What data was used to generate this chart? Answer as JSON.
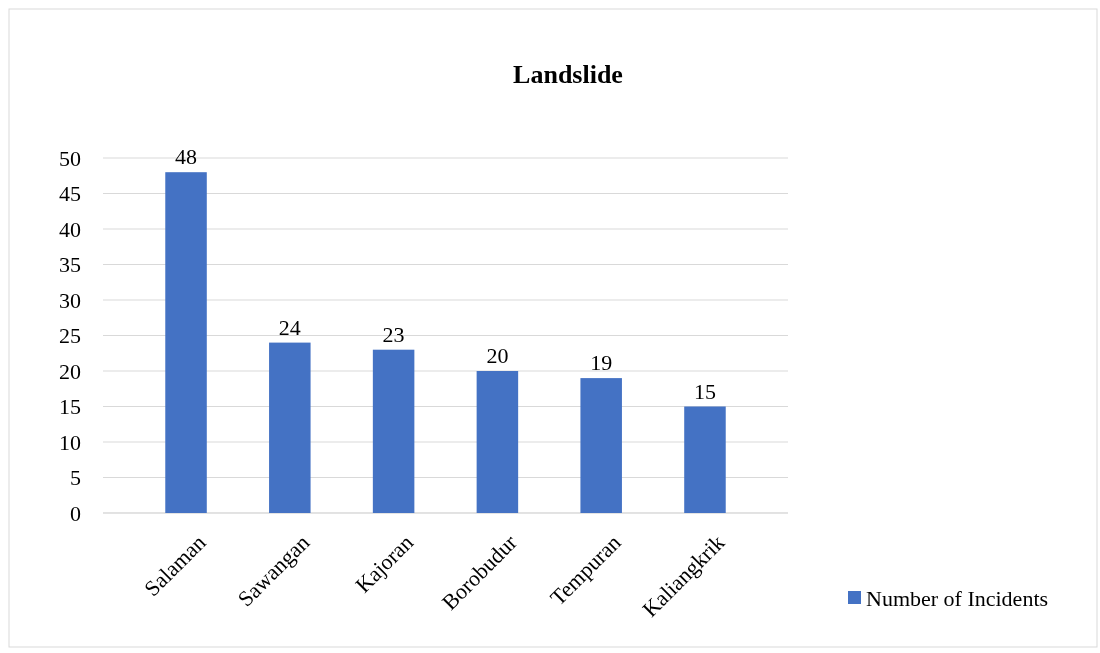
{
  "chart_data": {
    "type": "bar",
    "title": "Landslide",
    "categories": [
      "Salaman",
      "Sawangan",
      "Kajoran",
      "Borobudur",
      "Tempuran",
      "Kaliangkrik"
    ],
    "series": [
      {
        "name": "Number of Incidents",
        "color": "#4472c4",
        "values": [
          48,
          24,
          23,
          20,
          19,
          15
        ]
      }
    ],
    "ylim": [
      0,
      50
    ],
    "yticks": [
      0,
      5,
      10,
      15,
      20,
      25,
      30,
      35,
      40,
      45,
      50
    ],
    "grid": "y",
    "legend": "bottom right",
    "data_labels": true
  }
}
